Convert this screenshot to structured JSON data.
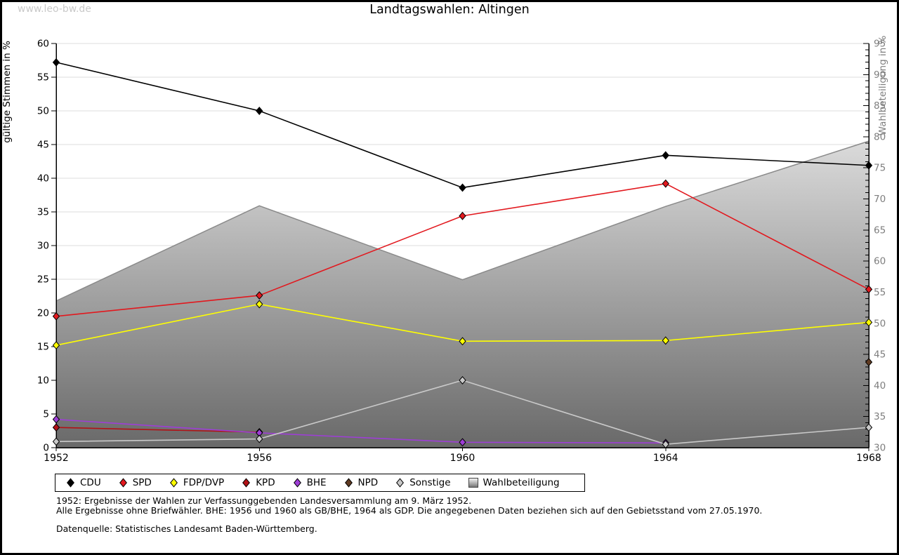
{
  "watermark": "www.leo-bw.de",
  "title": "Landtagswahlen: Altingen",
  "footnotes": {
    "line1": "1952: Ergebnisse der Wahlen zur Verfassunggebenden Landesversammlung am 9. März 1952.",
    "line2": "Alle Ergebnisse ohne Briefwähler. BHE: 1956 und 1960 als GB/BHE, 1964 als GDP. Die angegebenen Daten beziehen sich auf den Gebietsstand vom 27.05.1970.",
    "source": "Datenquelle: Statistisches Landesamt Baden-Württemberg."
  },
  "chart_data": {
    "type": "line",
    "title": "Landtagswahlen: Altingen",
    "x": [
      1952,
      1956,
      1960,
      1964,
      1968
    ],
    "ylabel_left": "gültige Stimmen in %",
    "ylabel_right": "Wahlbeteiligung in %",
    "axis_left": {
      "min": 0,
      "max": 60,
      "step": 5
    },
    "axis_right": {
      "min": 30,
      "max": 95,
      "step": 5,
      "minor": 1
    },
    "grid": true,
    "legend_position": "bottom",
    "series": [
      {
        "name": "CDU",
        "axis": "left",
        "color": "#000000",
        "marker": "diamond",
        "values": [
          57.2,
          50.0,
          38.6,
          43.4,
          41.9
        ]
      },
      {
        "name": "SPD",
        "axis": "left",
        "color": "#e2181e",
        "marker": "diamond",
        "values": [
          19.5,
          22.6,
          34.4,
          39.2,
          23.5
        ]
      },
      {
        "name": "FDP/DVP",
        "axis": "left",
        "color": "#ffff00",
        "marker": "diamond",
        "values": [
          15.2,
          21.3,
          15.8,
          15.9,
          18.6
        ]
      },
      {
        "name": "KPD",
        "axis": "left",
        "color": "#b11116",
        "marker": "diamond",
        "values": [
          3.0,
          2.3,
          null,
          null,
          null
        ]
      },
      {
        "name": "BHE",
        "axis": "left",
        "color": "#9e3ed6",
        "marker": "diamond",
        "values": [
          4.2,
          2.2,
          0.8,
          0.7,
          null
        ]
      },
      {
        "name": "NPD",
        "axis": "left",
        "color": "#5f3a21",
        "marker": "diamond",
        "values": [
          null,
          null,
          null,
          null,
          12.7
        ]
      },
      {
        "name": "Sonstige",
        "axis": "left",
        "color": "#c9c9c9",
        "marker": "diamond",
        "values": [
          0.9,
          1.3,
          10.0,
          0.5,
          3.0
        ]
      },
      {
        "name": "Wahlbeteiligung",
        "axis": "right",
        "type": "area",
        "color": "#8a8a8a",
        "fill_top": "#ffffff",
        "fill_bottom": "#696969",
        "values": [
          53.6,
          68.9,
          57.0,
          68.8,
          79.3
        ]
      }
    ],
    "layout": {
      "x_left": 80,
      "x_right": 1237,
      "y_top": 62,
      "y_bottom": 638,
      "gridline_color": "#dedede",
      "axis_color": "#000000",
      "right_label_color": "#7e7e7e"
    }
  }
}
